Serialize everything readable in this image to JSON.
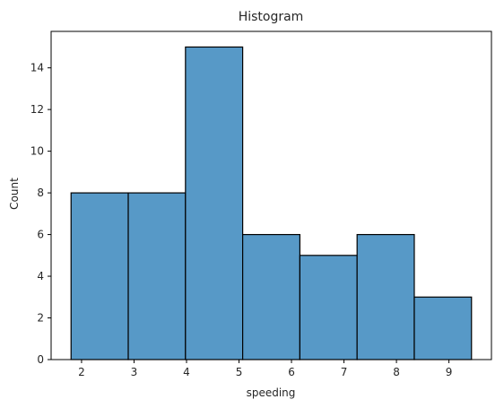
{
  "chart_data": {
    "type": "bar",
    "title": "Histogram",
    "xlabel": "speeding",
    "ylabel": "Count",
    "bin_edges": [
      1.8,
      2.89,
      3.98,
      5.07,
      6.16,
      7.25,
      8.34,
      9.43
    ],
    "values": [
      8,
      8,
      15,
      6,
      5,
      6,
      3
    ],
    "xlim": [
      1.42,
      9.81
    ],
    "ylim": [
      0,
      15.75
    ],
    "xticks": [
      2,
      3,
      4,
      5,
      6,
      7,
      8,
      9
    ],
    "yticks": [
      0,
      2,
      4,
      6,
      8,
      10,
      12,
      14
    ],
    "bar_color": "#5799c7",
    "edge_color": "#000000",
    "grid": false,
    "legend": "none"
  }
}
